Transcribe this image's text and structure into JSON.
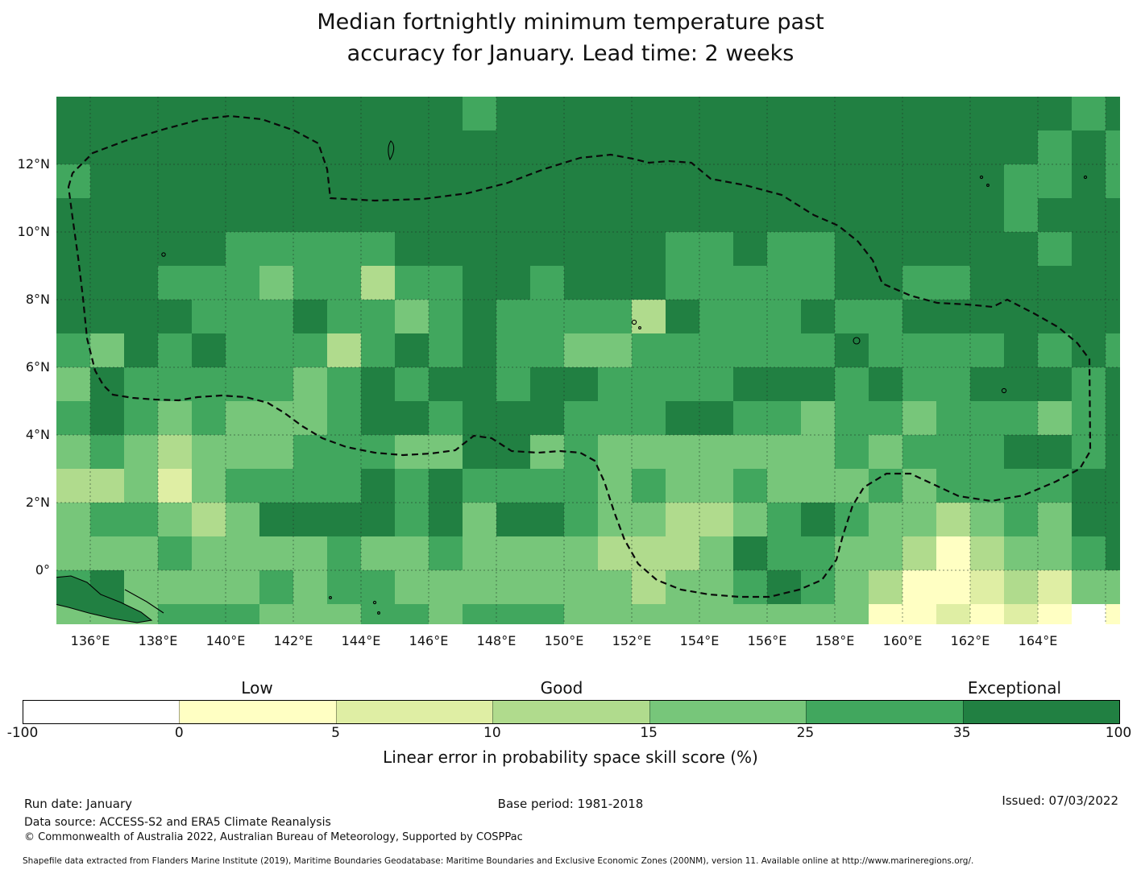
{
  "title": {
    "line1": "Median fortnightly minimum temperature past",
    "line2": "accuracy for January. Lead time: 2 weeks"
  },
  "map": {
    "y_tick_labels": [
      "12°N",
      "10°N",
      "8°N",
      "6°N",
      "4°N",
      "2°N",
      "0°"
    ],
    "x_tick_labels": [
      "136°E",
      "138°E",
      "140°E",
      "142°E",
      "144°E",
      "146°E",
      "148°E",
      "150°E",
      "152°E",
      "154°E",
      "156°E",
      "158°E",
      "160°E",
      "162°E",
      "164°E"
    ]
  },
  "colorbar": {
    "label_low": "Low",
    "label_good": "Good",
    "label_exceptional": "Exceptional",
    "tick_labels": [
      "-100",
      "0",
      "5",
      "10",
      "15",
      "25",
      "35",
      "100"
    ],
    "caption": "Linear error in probability space skill score (%)",
    "segment_colors": [
      "#ffffff",
      "#ffffc3",
      "#dfeea4",
      "#b0db8d",
      "#77c67a",
      "#41a75e",
      "#218042"
    ]
  },
  "footer": {
    "run_date": "Run date: January",
    "data_source": "Data source: ACCESS-S2 and ERA5 Climate Reanalysis",
    "copyright": "© Commonwealth of Australia 2022, Australian Bureau of Meteorology, Supported by COSPPac",
    "base_period": "Base period: 1981-2018",
    "issued": "Issued: 07/03/2022",
    "shapefile_note": "Shapefile data extracted from Flanders Marine Institute (2019), Maritime Boundaries Geodatabase: Maritime Boundaries and Exclusive Economic Zones (200NM), version 11. Available online at http://www.marineregions.org/."
  },
  "chart_data": {
    "type": "heatmap",
    "title": "Median fortnightly minimum temperature past accuracy for January. Lead time: 2 weeks",
    "xlabel_ticks_deg_east": [
      136,
      138,
      140,
      142,
      144,
      146,
      148,
      150,
      152,
      154,
      156,
      158,
      160,
      162,
      164
    ],
    "ylabel_ticks_deg_north": [
      12,
      10,
      8,
      6,
      4,
      2,
      0
    ],
    "x_range_deg_east": [
      135,
      167
    ],
    "y_range_deg_north": [
      14,
      -2
    ],
    "cell_size_deg": 1,
    "legend": {
      "scale_name": "Linear error in probability space skill score (%)",
      "boundaries": [
        -100,
        0,
        5,
        10,
        15,
        25,
        35,
        100
      ],
      "qualitative_labels": {
        "Low": "0-5",
        "Good": "10-15",
        "Exceptional": "35-100"
      }
    },
    "class_colors": [
      "#ffffff",
      "#ffffc3",
      "#dfeea4",
      "#b0db8d",
      "#77c67a",
      "#41a75e",
      "#218042"
    ],
    "class_bins": [
      "<0",
      "0-5",
      "5-10",
      "10-15",
      "15-25",
      "25-35",
      "35-100"
    ],
    "grid_rows_north_to_south": [
      [
        6,
        6,
        6,
        6,
        6,
        6,
        6,
        6,
        6,
        6,
        6,
        6,
        5,
        6,
        6,
        6,
        6,
        6,
        6,
        6,
        6,
        6,
        6,
        6,
        6,
        6,
        6,
        6,
        6,
        6,
        5,
        6
      ],
      [
        6,
        6,
        6,
        6,
        6,
        6,
        6,
        6,
        6,
        6,
        6,
        6,
        6,
        6,
        6,
        6,
        6,
        6,
        6,
        6,
        6,
        6,
        6,
        6,
        6,
        6,
        6,
        6,
        6,
        5,
        6,
        5
      ],
      [
        5,
        6,
        6,
        6,
        6,
        6,
        6,
        6,
        6,
        6,
        6,
        6,
        6,
        6,
        6,
        6,
        6,
        6,
        6,
        6,
        6,
        6,
        6,
        6,
        6,
        6,
        6,
        6,
        5,
        5,
        6,
        5
      ],
      [
        6,
        6,
        6,
        6,
        6,
        6,
        6,
        6,
        6,
        6,
        6,
        6,
        6,
        6,
        6,
        6,
        6,
        6,
        6,
        6,
        6,
        6,
        6,
        6,
        6,
        6,
        6,
        6,
        5,
        6,
        6,
        6
      ],
      [
        6,
        6,
        6,
        6,
        6,
        5,
        5,
        5,
        5,
        5,
        6,
        6,
        6,
        6,
        6,
        6,
        6,
        6,
        5,
        5,
        6,
        5,
        5,
        6,
        6,
        6,
        6,
        6,
        6,
        5,
        6,
        6
      ],
      [
        6,
        6,
        6,
        5,
        5,
        5,
        4,
        5,
        5,
        3,
        5,
        5,
        6,
        6,
        5,
        6,
        6,
        6,
        5,
        5,
        5,
        5,
        5,
        6,
        6,
        5,
        5,
        6,
        6,
        6,
        6,
        6
      ],
      [
        6,
        6,
        6,
        6,
        5,
        5,
        5,
        6,
        5,
        5,
        4,
        5,
        6,
        5,
        5,
        5,
        5,
        3,
        6,
        5,
        5,
        5,
        6,
        5,
        5,
        6,
        6,
        6,
        6,
        6,
        6,
        6
      ],
      [
        5,
        4,
        6,
        5,
        6,
        5,
        5,
        5,
        3,
        5,
        6,
        5,
        6,
        5,
        5,
        4,
        4,
        5,
        5,
        5,
        5,
        5,
        5,
        6,
        5,
        5,
        5,
        5,
        6,
        5,
        6,
        5
      ],
      [
        4,
        6,
        5,
        5,
        5,
        5,
        5,
        4,
        5,
        6,
        5,
        6,
        6,
        5,
        6,
        6,
        5,
        5,
        5,
        5,
        6,
        6,
        6,
        5,
        6,
        5,
        5,
        6,
        6,
        6,
        5,
        6
      ],
      [
        5,
        6,
        5,
        4,
        5,
        4,
        4,
        4,
        5,
        6,
        6,
        5,
        6,
        6,
        6,
        5,
        5,
        5,
        6,
        6,
        5,
        5,
        4,
        5,
        5,
        4,
        5,
        5,
        5,
        4,
        5,
        6
      ],
      [
        4,
        5,
        4,
        3,
        4,
        4,
        4,
        5,
        5,
        5,
        4,
        4,
        6,
        6,
        4,
        5,
        4,
        4,
        4,
        4,
        4,
        4,
        4,
        5,
        4,
        5,
        5,
        5,
        6,
        6,
        5,
        6
      ],
      [
        3,
        3,
        4,
        2,
        4,
        5,
        5,
        5,
        5,
        6,
        5,
        6,
        5,
        5,
        5,
        5,
        4,
        5,
        4,
        4,
        5,
        4,
        4,
        4,
        5,
        4,
        5,
        5,
        5,
        5,
        6,
        6
      ],
      [
        4,
        5,
        5,
        4,
        3,
        4,
        6,
        6,
        6,
        6,
        5,
        6,
        4,
        6,
        6,
        5,
        4,
        4,
        3,
        3,
        4,
        5,
        6,
        5,
        4,
        4,
        3,
        4,
        5,
        4,
        6,
        6
      ],
      [
        4,
        4,
        4,
        5,
        4,
        4,
        4,
        4,
        5,
        4,
        4,
        5,
        4,
        4,
        4,
        4,
        3,
        3,
        3,
        4,
        6,
        5,
        5,
        4,
        4,
        3,
        1,
        3,
        4,
        4,
        5,
        6
      ],
      [
        5,
        6,
        4,
        4,
        4,
        4,
        5,
        4,
        5,
        5,
        4,
        4,
        4,
        4,
        4,
        4,
        4,
        3,
        4,
        4,
        5,
        6,
        5,
        4,
        3,
        1,
        1,
        2,
        3,
        2,
        4,
        4
      ],
      [
        4,
        4,
        4,
        5,
        5,
        5,
        4,
        4,
        4,
        5,
        5,
        4,
        5,
        5,
        5,
        4,
        4,
        4,
        4,
        4,
        4,
        4,
        4,
        4,
        1,
        1,
        2,
        1,
        2,
        1,
        0,
        1
      ]
    ],
    "overlay": "Dashed black boundary = Exclusive Economic Zone (FSM/Micronesia region); thin black outlines = coastlines (New Guinea, Guam, Yap, Chuuk, Pohnpei, Kosrae)"
  }
}
